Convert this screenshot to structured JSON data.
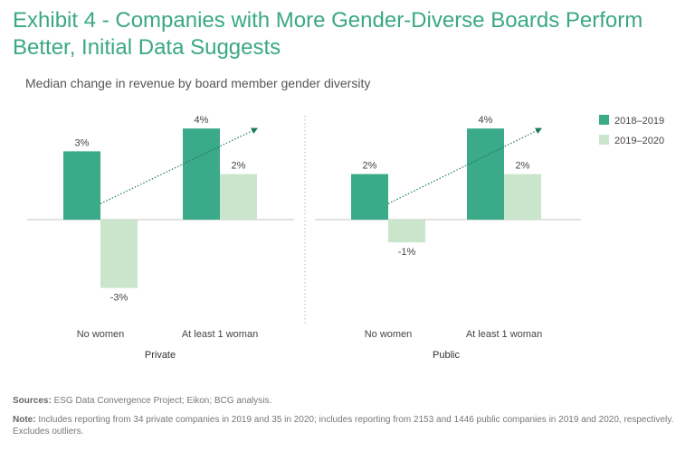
{
  "title": "Exhibit 4 - Companies with More Gender-Diverse Boards Perform Better, Initial Data Suggests",
  "footer": {
    "sources_label": "Sources:",
    "sources_text": "ESG Data Convergence Project; Eikon; BCG analysis.",
    "note_label": "Note:",
    "note_text": "Includes reporting from 34 private companies in 2019 and 35 in 2020; includes reporting from 2153 and 1446 public companies in 2019 and 2020, respectively. Excludes outliers."
  },
  "chart_data": {
    "type": "bar",
    "title": "Median change in revenue by board member gender diversity",
    "unit": "%",
    "legend": {
      "position": "top-right"
    },
    "series": [
      {
        "name": "2018–2019",
        "color": "#3aaa89"
      },
      {
        "name": "2019–2020",
        "color": "#c9e6cc"
      }
    ],
    "panels": [
      {
        "name": "Private",
        "categories": [
          "No women",
          "At least 1 woman"
        ],
        "values": [
          [
            3,
            -3
          ],
          [
            4,
            2
          ]
        ],
        "labels": [
          [
            "3%",
            "-3%"
          ],
          [
            "4%",
            "2%"
          ]
        ]
      },
      {
        "name": "Public",
        "categories": [
          "No women",
          "At least 1 woman"
        ],
        "values": [
          [
            2,
            -1
          ],
          [
            4,
            2
          ]
        ],
        "labels": [
          [
            "2%",
            "-1%"
          ],
          [
            "4%",
            "2%"
          ]
        ]
      }
    ],
    "trend_arrow": {
      "color": "#1f7a5e",
      "style": "dotted"
    }
  }
}
